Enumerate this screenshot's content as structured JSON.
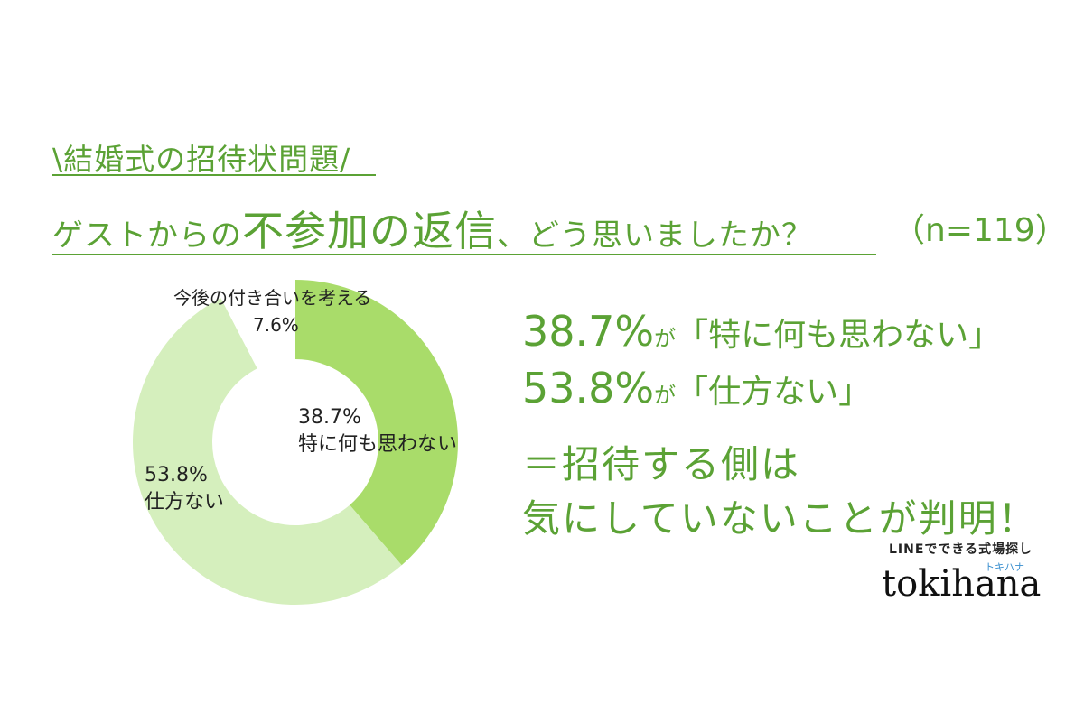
{
  "header": {
    "subtitle": "\\結婚式の招待状問題/",
    "question_part1": "ゲストからの",
    "question_part2": "不参加の返信",
    "question_part3": "、どう思いましたか？",
    "sample": "（n=119）"
  },
  "chart_data": {
    "type": "pie",
    "slices": [
      {
        "label": "特に何も思わない",
        "value": 38.7,
        "value_label": "38.7%",
        "color": "#a9dc6a"
      },
      {
        "label": "仕方ない",
        "value": 53.8,
        "value_label": "53.8%",
        "color": "#d5efbd"
      },
      {
        "label": "今後の付き合いを考える",
        "value": 7.6,
        "value_label": "7.6%",
        "color": "#ffffff"
      }
    ]
  },
  "stats": {
    "line1_num": "38.7%",
    "line1_ga": "が",
    "line1_quote": "「特に何も思わない」",
    "line2_num": "53.8%",
    "line2_ga": "が",
    "line2_quote": "「仕方ない」",
    "conclusion1": "＝招待する側は",
    "conclusion2": "気にしていないことが判明！"
  },
  "brand": {
    "tagline": "LINEでできる式場探し",
    "kana": "トキハナ",
    "logo": "tokihana"
  }
}
